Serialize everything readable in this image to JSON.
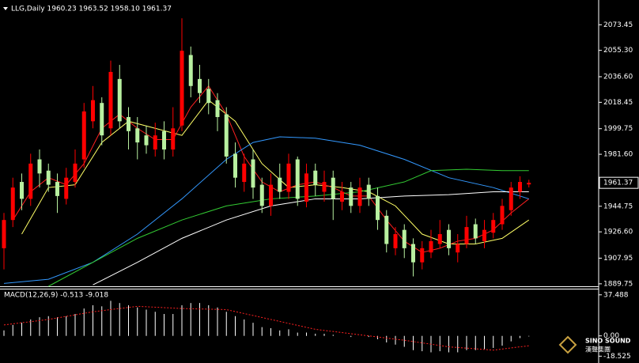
{
  "chart_data": [
    {
      "type": "candlestick",
      "title": "LLG,Daily 1960.23 1963.52 1958.10 1961.37",
      "up_color": "#ff0000",
      "down_color": "#b8f0a0",
      "open": [
        1915,
        1935,
        1962,
        1950,
        1978,
        1970,
        1962,
        1950,
        1962,
        1978,
        2005,
        2018,
        2000,
        2035,
        2008,
        2000,
        1995,
        1985,
        1998,
        1985,
        2002,
        2052,
        2035,
        2028,
        2020,
        2010,
        1982,
        1962,
        1978,
        1960,
        1945,
        1965,
        1955,
        1978,
        1948,
        1970,
        1955,
        1965,
        1948,
        1958,
        1945,
        1960,
        1952,
        1938,
        1915,
        1928,
        1918,
        1905,
        1912,
        1918,
        1928,
        1912,
        1918,
        1932,
        1920,
        1926,
        1932,
        1942,
        1955,
        1960.23
      ],
      "high": [
        1940,
        1965,
        1968,
        1982,
        1985,
        1975,
        1968,
        1972,
        1985,
        2018,
        2030,
        2022,
        2048,
        2045,
        2015,
        2008,
        2002,
        2004,
        2005,
        2015,
        2078,
        2058,
        2045,
        2035,
        2025,
        2015,
        1990,
        1982,
        1985,
        1965,
        1968,
        1975,
        1982,
        1980,
        1975,
        1975,
        1970,
        1970,
        1962,
        1962,
        1965,
        1965,
        1958,
        1942,
        1930,
        1932,
        1922,
        1920,
        1928,
        1935,
        1932,
        1925,
        1938,
        1936,
        1935,
        1940,
        1950,
        1962,
        1966,
        1963.52
      ],
      "low": [
        1900,
        1930,
        1942,
        1945,
        1958,
        1955,
        1940,
        1946,
        1958,
        1972,
        2000,
        1988,
        1995,
        2000,
        1985,
        1978,
        1982,
        1980,
        1978,
        1980,
        1998,
        2022,
        2018,
        2010,
        1998,
        1975,
        1958,
        1955,
        1950,
        1940,
        1938,
        1950,
        1950,
        1945,
        1944,
        1952,
        1948,
        1935,
        1942,
        1940,
        1940,
        1945,
        1928,
        1912,
        1910,
        1908,
        1895,
        1900,
        1908,
        1915,
        1910,
        1905,
        1915,
        1918,
        1915,
        1922,
        1928,
        1938,
        1950,
        1958.1
      ],
      "close": [
        1935,
        1958,
        1950,
        1975,
        1968,
        1960,
        1952,
        1965,
        1975,
        2012,
        2020,
        1995,
        2040,
        2005,
        1998,
        1990,
        1988,
        1995,
        1985,
        2000,
        2055,
        2030,
        2025,
        2018,
        2008,
        1980,
        1965,
        1975,
        1958,
        1945,
        1960,
        1955,
        1975,
        1950,
        1968,
        1960,
        1962,
        1950,
        1955,
        1945,
        1958,
        1950,
        1935,
        1918,
        1925,
        1915,
        1905,
        1915,
        1920,
        1925,
        1915,
        1918,
        1930,
        1922,
        1928,
        1935,
        1945,
        1958,
        1962,
        1961.37
      ],
      "series": [
        {
          "color": "#ffff66",
          "x": [
            2,
            5,
            8,
            11,
            14,
            17,
            20,
            23,
            26,
            29,
            32,
            35,
            38,
            41,
            44,
            47,
            50,
            53,
            56,
            59
          ],
          "values": [
            1925,
            1958,
            1960,
            1990,
            2005,
            2000,
            1995,
            2020,
            2005,
            1975,
            1958,
            1960,
            1958,
            1955,
            1945,
            1925,
            1918,
            1918,
            1922,
            1935
          ]
        },
        {
          "color": "#ff2020",
          "x": [
            1,
            3,
            5,
            7,
            9,
            11,
            13,
            15,
            17,
            19,
            21,
            23,
            25,
            27,
            29,
            31,
            33,
            35,
            37,
            39,
            41,
            43,
            45,
            47,
            49,
            51,
            53,
            55,
            57,
            59
          ],
          "values": [
            1935,
            1955,
            1965,
            1960,
            1975,
            2000,
            2010,
            2000,
            1992,
            1992,
            2015,
            2030,
            2010,
            1980,
            1962,
            1955,
            1960,
            1962,
            1958,
            1952,
            1952,
            1935,
            1920,
            1912,
            1915,
            1920,
            1922,
            1928,
            1940,
            1950
          ]
        },
        {
          "color": "#3399ff",
          "x": [
            0,
            5,
            10,
            15,
            20,
            25,
            28,
            31,
            35,
            40,
            45,
            50,
            55,
            59
          ],
          "values": [
            1890,
            1893,
            1905,
            1925,
            1950,
            1978,
            1990,
            1994,
            1993,
            1988,
            1978,
            1965,
            1958,
            1950
          ]
        },
        {
          "color": "#33cc33",
          "x": [
            5,
            10,
            15,
            20,
            25,
            30,
            35,
            40,
            45,
            48,
            52,
            56,
            59
          ],
          "values": [
            1888,
            1905,
            1922,
            1935,
            1945,
            1950,
            1952,
            1955,
            1962,
            1970,
            1971,
            1970,
            1970
          ]
        },
        {
          "color": "#ffffff",
          "x": [
            10,
            15,
            20,
            25,
            30,
            35,
            40,
            45,
            50,
            55,
            59
          ],
          "values": [
            1889,
            1905,
            1922,
            1935,
            1945,
            1950,
            1950,
            1952,
            1953,
            1955,
            1955
          ]
        }
      ],
      "ylim": [
        1888,
        2091
      ],
      "yticks": [
        2073.45,
        {
          "value": 2055.3,
          "label": "2055.30"
        },
        {
          "value": 2036.6,
          "label": "2036.60"
        },
        2018.45,
        1999.75,
        {
          "value": 1981.6,
          "label": "1981.60"
        },
        1944.75,
        {
          "value": 1926.6,
          "label": "1926.60"
        },
        1907.95,
        1889.75
      ]
    },
    {
      "type": "macd",
      "title": "MACD(12,26,9) -0.513 -9.018",
      "values": [
        5,
        10,
        12,
        15,
        17,
        18,
        17,
        18,
        20,
        25,
        28,
        27,
        32,
        30,
        28,
        26,
        24,
        22,
        20,
        20,
        28,
        30,
        30,
        28,
        26,
        22,
        18,
        15,
        12,
        8,
        7,
        5,
        6,
        3,
        3,
        2,
        2,
        1,
        0,
        -1,
        0,
        -1,
        -3,
        -6,
        -8,
        -10,
        -13,
        -14,
        -15,
        -14,
        -15,
        -15,
        -13,
        -13,
        -12,
        -11,
        -9,
        -5,
        -2,
        -0.513
      ],
      "signal": {
        "color": "#ff2020",
        "x": [
          0,
          5,
          10,
          15,
          20,
          25,
          30,
          35,
          40,
          45,
          50,
          55,
          59
        ],
        "values": [
          10,
          15,
          22,
          27,
          25,
          24,
          15,
          6,
          1,
          -4,
          -10,
          -13,
          -9.018
        ]
      },
      "ylim": [
        -22.6,
        42.4
      ],
      "yticks": [
        37.488,
        {
          "value": 0,
          "label": "0.00"
        },
        -18.525
      ]
    }
  ],
  "watermark": {
    "brand": "SINO SOUND",
    "subtitle": "漢聲集團"
  }
}
